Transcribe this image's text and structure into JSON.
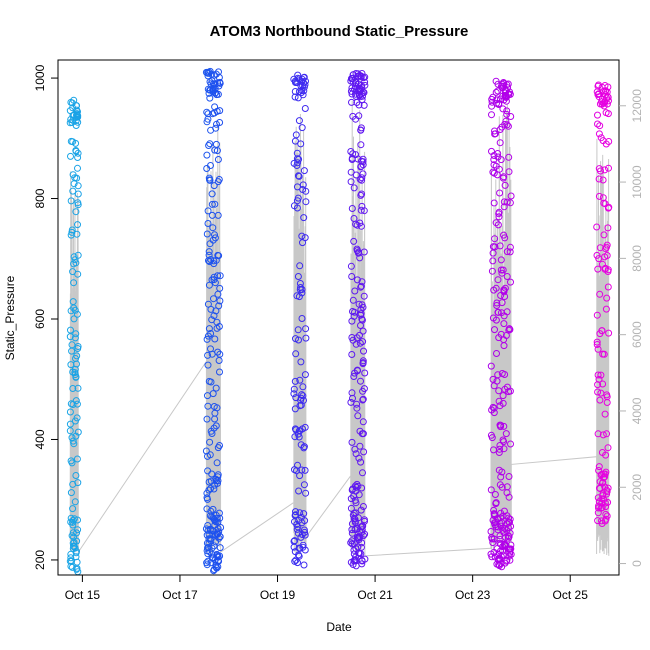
{
  "chart_data": {
    "type": "scatter",
    "title": "ATOM3 Northbound Static_Pressure",
    "xlabel": "Date",
    "ylabel": "Static_Pressure",
    "xlim": [
      "2016-10-14T12:00",
      "2016-10-26T00:00"
    ],
    "ylim": [
      175,
      1030
    ],
    "x_ticks": [
      "Oct 15",
      "Oct 17",
      "Oct 19",
      "Oct 21",
      "Oct 23",
      "Oct 25"
    ],
    "x_tick_dates": [
      "2016-10-15",
      "2016-10-17",
      "2016-10-19",
      "2016-10-21",
      "2016-10-23",
      "2016-10-25"
    ],
    "y_ticks": [
      200,
      400,
      600,
      800,
      1000
    ],
    "secondary_axis": {
      "ylim": [
        -300,
        13200
      ],
      "ticks": [
        0,
        2000,
        4000,
        6000,
        8000,
        10000,
        12000
      ],
      "color": "#b3b3b3",
      "series_color": "#c8c8c8"
    },
    "point_color_gradient": [
      "#1aa6e6",
      "#1f3df0",
      "#8a00f0",
      "#e800e0"
    ],
    "bursts": [
      {
        "start": "2016-10-14T18:00",
        "end": "2016-10-14T22:00",
        "min": 180,
        "max": 965,
        "count": 140,
        "depth_max": 10300,
        "depth_end": 300
      },
      {
        "start": "2016-10-17T13:00",
        "end": "2016-10-17T20:00",
        "min": 182,
        "max": 1012,
        "count": 230,
        "depth_max": 12100,
        "depth_start": 5300,
        "depth_end": 300
      },
      {
        "start": "2016-10-19T08:00",
        "end": "2016-10-19T14:00",
        "min": 188,
        "max": 1005,
        "count": 140,
        "depth_max": 11800,
        "depth_start": 1600,
        "depth_end": 700
      },
      {
        "start": "2016-10-20T12:00",
        "end": "2016-10-20T19:00",
        "min": 190,
        "max": 1008,
        "count": 230,
        "depth_max": 12300,
        "depth_start": 2300,
        "depth_end": 200
      },
      {
        "start": "2016-10-23T09:00",
        "end": "2016-10-23T19:00",
        "min": 188,
        "max": 995,
        "count": 260,
        "depth_max": 12100,
        "depth_start": 400,
        "depth_end": 2600
      },
      {
        "start": "2016-10-25T13:00",
        "end": "2016-10-25T19:00",
        "min": 260,
        "max": 990,
        "count": 140,
        "depth_max": 11600,
        "depth_start": 2800,
        "depth_end": 200
      }
    ]
  }
}
